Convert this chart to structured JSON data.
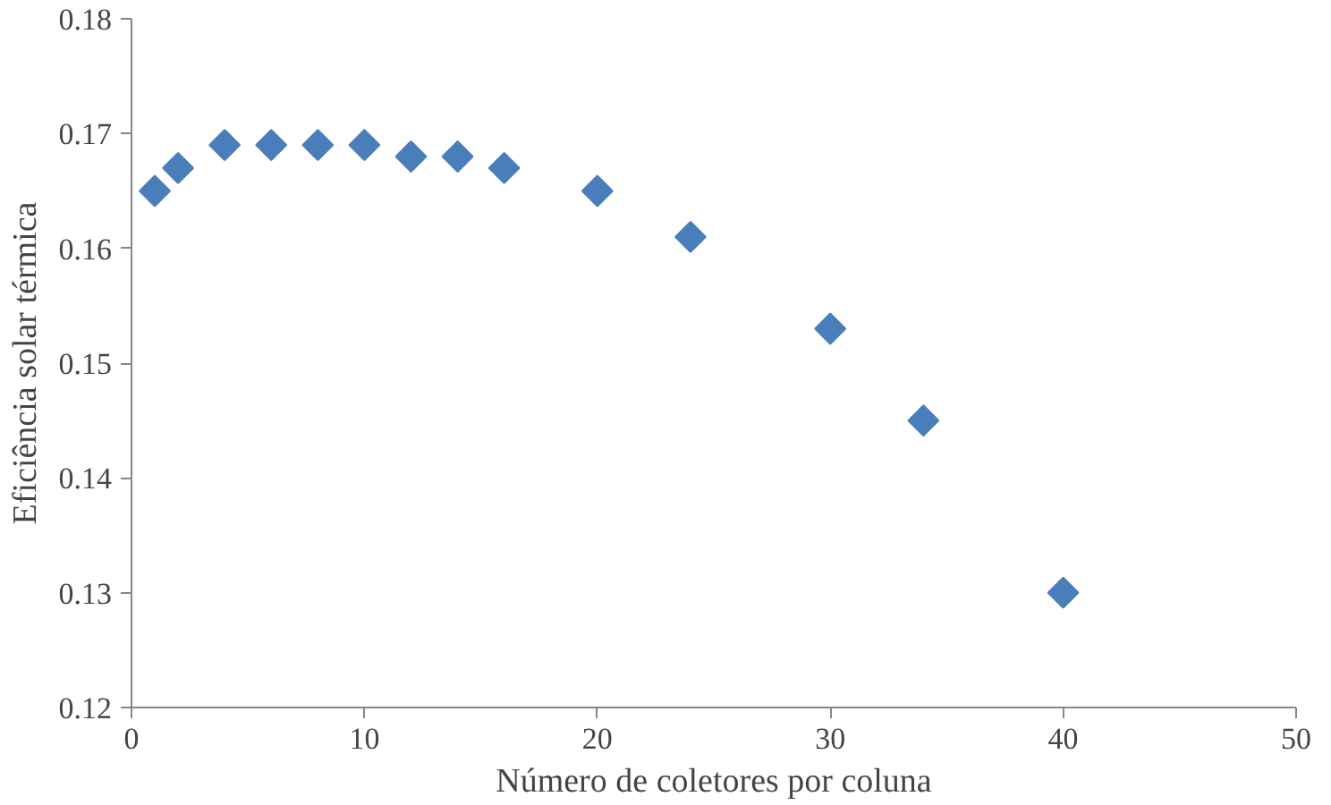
{
  "chart_data": {
    "type": "scatter",
    "xlabel": "Número de coletores por coluna",
    "ylabel": "Eficiência solar térmica",
    "x": [
      1,
      2,
      4,
      6,
      8,
      10,
      12,
      14,
      16,
      20,
      24,
      30,
      34,
      40
    ],
    "series": [
      {
        "color": "#4a7ebb",
        "values": [
          0.165,
          0.167,
          0.169,
          0.169,
          0.169,
          0.169,
          0.168,
          0.168,
          0.167,
          0.165,
          0.161,
          0.153,
          0.145,
          0.13
        ]
      }
    ],
    "xlim": [
      0,
      50
    ],
    "ylim": [
      0.12,
      0.18
    ],
    "xticks": [
      0,
      10,
      20,
      30,
      40,
      50
    ],
    "yticks": [
      {
        "value": 0.12,
        "label": "0.12"
      },
      {
        "value": 0.13,
        "label": "0.13"
      },
      {
        "value": 0.14,
        "label": "0.14"
      },
      {
        "value": 0.15,
        "label": "0.15"
      },
      {
        "value": 0.16,
        "label": "0.16"
      },
      {
        "value": 0.17,
        "label": "0.17"
      },
      {
        "value": 0.18,
        "label": "0.18"
      }
    ],
    "marker": "diamond",
    "grid": false
  }
}
